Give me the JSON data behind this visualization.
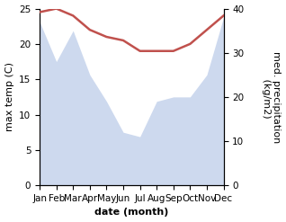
{
  "months": [
    "Jan",
    "Feb",
    "Mar",
    "Apr",
    "May",
    "Jun",
    "Jul",
    "Aug",
    "Sep",
    "Oct",
    "Nov",
    "Dec"
  ],
  "month_positions": [
    0,
    1,
    2,
    3,
    4,
    5,
    6,
    7,
    8,
    9,
    10,
    11
  ],
  "temp_data": [
    24.5,
    25.0,
    24.0,
    22.0,
    21.0,
    20.5,
    19.0,
    19.0,
    19.0,
    20.0,
    22.0,
    24.0
  ],
  "precip_data": [
    37,
    28,
    35,
    25,
    19,
    12,
    11,
    19,
    20,
    20,
    25,
    38
  ],
  "temp_line_color": "#c0514d",
  "precip_fill_color": "#b8c9e8",
  "precip_fill_alpha": 0.7,
  "xlabel": "date (month)",
  "ylabel_left": "max temp (C)",
  "ylabel_right": "med. precipitation\n (kg/m2)",
  "ylim_left": [
    0,
    25
  ],
  "ylim_right": [
    0,
    40
  ],
  "yticks_left": [
    0,
    5,
    10,
    15,
    20,
    25
  ],
  "yticks_right": [
    0,
    10,
    20,
    30,
    40
  ],
  "label_fontsize": 8,
  "tick_fontsize": 7.5
}
